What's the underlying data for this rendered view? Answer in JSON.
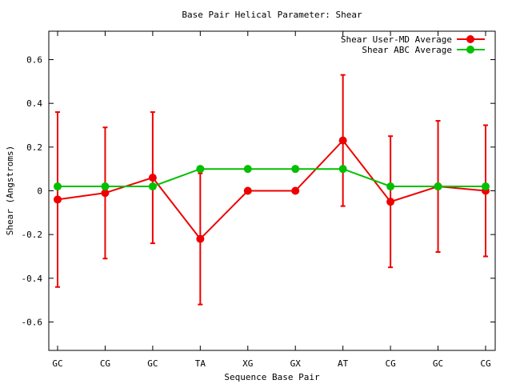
{
  "chart_data": {
    "type": "line",
    "title": "Base Pair Helical Parameter: Shear",
    "xlabel": "Sequence Base Pair",
    "ylabel": "Shear (Angstroms)",
    "categories": [
      "GC",
      "CG",
      "GC",
      "TA",
      "XG",
      "GX",
      "AT",
      "CG",
      "GC",
      "CG"
    ],
    "ylim": [
      -0.73,
      0.73
    ],
    "yticks": [
      -0.6,
      -0.4,
      -0.2,
      0,
      0.2,
      0.4,
      0.6
    ],
    "ytick_labels": [
      "-0.6",
      "-0.4",
      "-0.2",
      "0",
      "0.2",
      "0.4",
      "0.6"
    ],
    "legend_position": "top-right",
    "grid": false,
    "series": [
      {
        "name": "Shear User-MD Average",
        "color": "#ee0000",
        "values": [
          -0.04,
          -0.01,
          0.06,
          -0.22,
          0.0,
          0.0,
          0.23,
          -0.05,
          0.02,
          0.0
        ],
        "errors": [
          0.4,
          0.3,
          0.3,
          0.3,
          0.0,
          0.0,
          0.3,
          0.3,
          0.3,
          0.3
        ]
      },
      {
        "name": "Shear ABC Average",
        "color": "#00c000",
        "values": [
          0.02,
          0.02,
          0.02,
          0.1,
          0.1,
          0.1,
          0.1,
          0.02,
          0.02,
          0.02
        ]
      }
    ]
  }
}
